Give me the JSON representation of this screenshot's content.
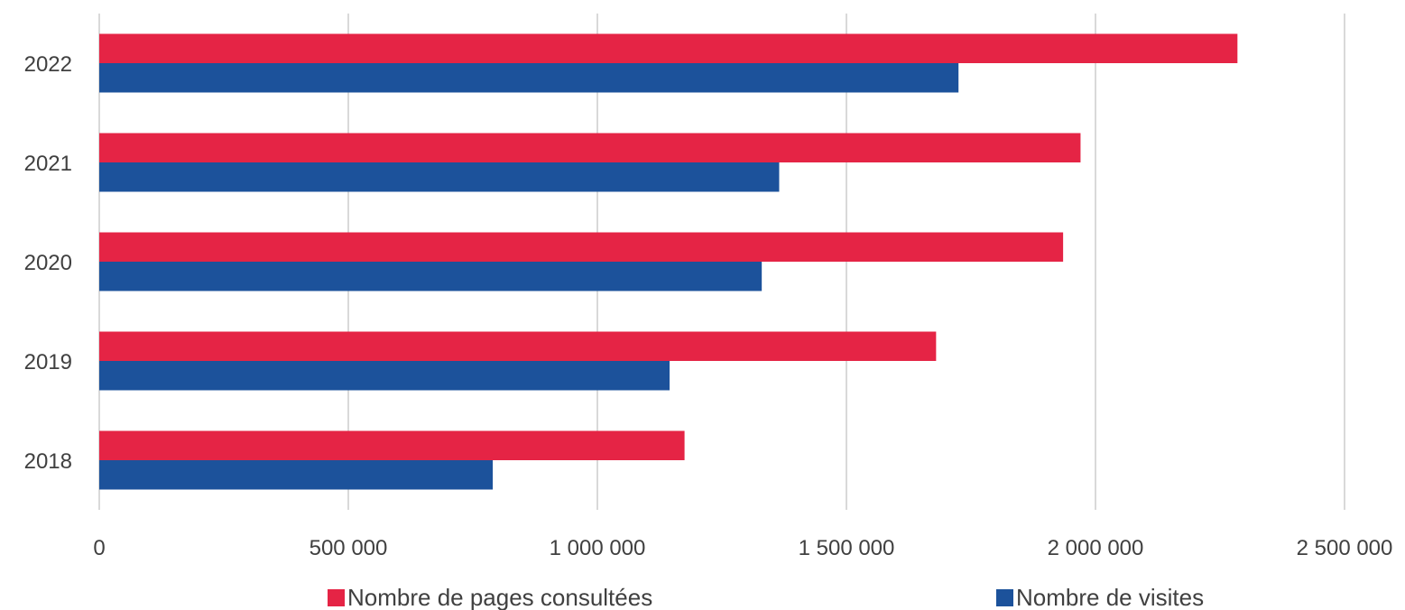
{
  "chart_data": {
    "type": "bar",
    "orientation": "horizontal",
    "title": "",
    "xlabel": "",
    "ylabel": "",
    "categories": [
      "2022",
      "2021",
      "2020",
      "2019",
      "2018"
    ],
    "series": [
      {
        "name": "Nombre de pages consultées",
        "color": "#e52445",
        "values": [
          2285000,
          1970000,
          1935000,
          1680000,
          1175000
        ]
      },
      {
        "name": "Nombre de visites",
        "color": "#1c529b",
        "values": [
          1725000,
          1365000,
          1330000,
          1145000,
          790000
        ]
      }
    ],
    "xlim": [
      0,
      2500000
    ],
    "xticks": [
      0,
      500000,
      1000000,
      1500000,
      2000000,
      2500000
    ],
    "xtick_labels": [
      "0",
      "500 000",
      "1 000 000",
      "1 500 000",
      "2 000 000",
      "2 500 000"
    ],
    "grid": "vertical",
    "legend_position": "bottom"
  }
}
